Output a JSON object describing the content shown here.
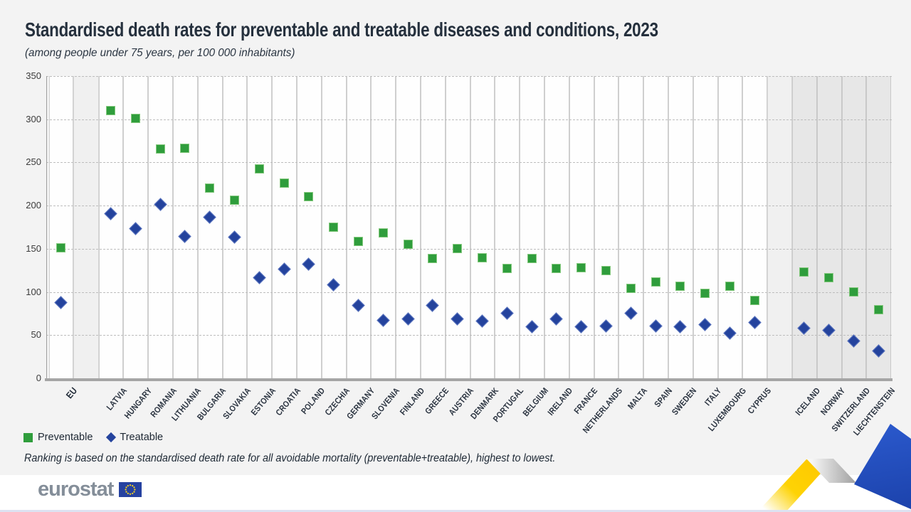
{
  "title": "Standardised death rates for preventable and treatable diseases and conditions, 2023",
  "subtitle": "(among people under 75 years, per 100 000 inhabitants)",
  "legend": [
    {
      "label": "Preventable",
      "marker": "square",
      "color": "#2F9D3C"
    },
    {
      "label": "Treatable",
      "marker": "diamond",
      "color": "#24439D"
    }
  ],
  "footnote": "Ranking is based on the standardised death rate for all avoidable mortality (preventable+treatable), highest to lowest.",
  "logo": {
    "text": "eurostat",
    "flag_icon": "eu-flag-icon"
  },
  "colors": {
    "preventable_fill": "#2F9D3C",
    "preventable_border": "#85C97E",
    "treatable_fill": "#24439D",
    "treatable_border": "#5A74BF",
    "background": "#F3F3F3",
    "efta_band": "#E7E7E7",
    "ribbon_yellow": "#FFD200",
    "ribbon_blue": "#2450C0"
  },
  "chart_data": {
    "type": "scatter",
    "title": "Standardised death rates for preventable and treatable diseases and conditions, 2023",
    "subtitle": "(among people under 75 years, per 100 000 inhabitants)",
    "categories": [
      "EU",
      "LATVIA",
      "HUNGARY",
      "ROMANIA",
      "LITHUANIA",
      "BULGARIA",
      "SLOVAKIA",
      "ESTONIA",
      "CROATIA",
      "POLAND",
      "CZECHIA",
      "GERMANY",
      "SLOVENIA",
      "FINLAND",
      "GREECE",
      "AUSTRIA",
      "DENMARK",
      "PORTUGAL",
      "BELGIUM",
      "IRELAND",
      "FRANCE",
      "NETHERLANDS",
      "MALTA",
      "SPAIN",
      "SWEDEN",
      "ITALY",
      "LUXEMBOURG",
      "CYPRUS",
      "ICELAND",
      "NORWAY",
      "SWITZERLAND",
      "LIECHTENSTEIN"
    ],
    "series": [
      {
        "name": "Preventable",
        "marker": "square",
        "color": "#2F9D3C",
        "values": [
          151,
          310,
          301,
          265,
          266,
          220,
          206,
          242,
          226,
          210,
          175,
          158,
          168,
          155,
          138,
          150,
          139,
          127,
          138,
          127,
          128,
          124,
          104,
          111,
          106,
          98,
          106,
          90,
          123,
          116,
          100,
          79
        ]
      },
      {
        "name": "Treatable",
        "marker": "diamond",
        "color": "#24439D",
        "values": [
          87,
          190,
          173,
          201,
          164,
          186,
          163,
          116,
          126,
          132,
          108,
          84,
          67,
          68,
          84,
          68,
          66,
          75,
          59,
          68,
          59,
          60,
          75,
          60,
          59,
          62,
          52,
          64,
          58,
          55,
          43,
          31
        ]
      }
    ],
    "ylim": [
      0,
      350
    ],
    "yticks": [
      0,
      50,
      100,
      150,
      200,
      250,
      300,
      350
    ],
    "grid": "horizontal-dashed",
    "legend_position": "bottom-left",
    "shaded_categories": [
      "ICELAND",
      "NORWAY",
      "SWITZERLAND",
      "LIECHTENSTEIN"
    ],
    "separators_after": [
      "EU",
      "CYPRUS"
    ]
  }
}
